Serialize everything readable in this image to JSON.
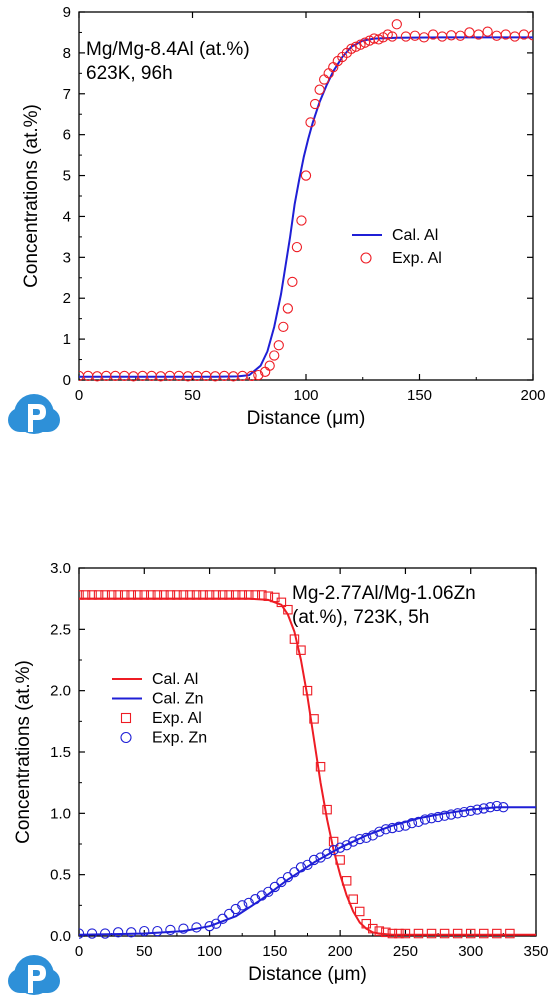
{
  "colors": {
    "red": "#ee1c24",
    "blue": "#1f1fd6",
    "logo": "#2e90d8"
  },
  "logo_icon": "cloud-p-logo-icon",
  "chart_data": [
    {
      "type": "line",
      "title": "",
      "annotation_lines": [
        "Mg/Mg-8.4Al (at.%)",
        "623K, 96h"
      ],
      "xlabel": "Distance (μm)",
      "ylabel": "Concentrations (at.%)",
      "xlim": [
        0,
        200
      ],
      "ylim": [
        0,
        9
      ],
      "xticks": [
        "0",
        "50",
        "100",
        "150",
        "200"
      ],
      "yticks": [
        "0",
        "1",
        "2",
        "3",
        "4",
        "5",
        "6",
        "7",
        "8",
        "9"
      ],
      "legend": "center-right",
      "grid": false,
      "series": [
        {
          "name": "Cal. Al",
          "style": "line",
          "color": "#1f1fd6",
          "x": [
            0,
            20,
            40,
            60,
            70,
            75,
            80,
            83,
            86,
            89,
            91,
            93,
            95,
            97,
            99,
            101,
            103,
            106,
            109,
            112,
            116,
            120,
            125,
            130,
            140,
            160,
            180,
            200
          ],
          "y": [
            0.08,
            0.08,
            0.08,
            0.08,
            0.09,
            0.12,
            0.35,
            0.7,
            1.3,
            2.1,
            2.8,
            3.5,
            4.3,
            4.9,
            5.45,
            5.9,
            6.3,
            6.8,
            7.2,
            7.55,
            7.9,
            8.15,
            8.3,
            8.35,
            8.37,
            8.38,
            8.38,
            8.38
          ]
        },
        {
          "name": "Exp. Al",
          "style": "circle",
          "color": "#ee1c24",
          "x": [
            0,
            4,
            8,
            12,
            16,
            20,
            24,
            28,
            32,
            36,
            40,
            44,
            48,
            52,
            56,
            60,
            64,
            68,
            72,
            76,
            79,
            82,
            84,
            86,
            88,
            90,
            92,
            94,
            96,
            98,
            100,
            102,
            104,
            106,
            108,
            110,
            112,
            114,
            116,
            118,
            120,
            122,
            124,
            126,
            128,
            130,
            132,
            134,
            136,
            138,
            140,
            144,
            148,
            152,
            156,
            160,
            164,
            168,
            172,
            176,
            180,
            184,
            188,
            192,
            196,
            200
          ],
          "y": [
            0.1,
            0.1,
            0.09,
            0.1,
            0.1,
            0.1,
            0.09,
            0.1,
            0.1,
            0.09,
            0.1,
            0.1,
            0.09,
            0.1,
            0.1,
            0.09,
            0.1,
            0.09,
            0.1,
            0.1,
            0.12,
            0.2,
            0.35,
            0.6,
            0.85,
            1.3,
            1.75,
            2.4,
            3.25,
            3.9,
            5.0,
            6.3,
            6.75,
            7.1,
            7.35,
            7.5,
            7.65,
            7.8,
            7.9,
            8.0,
            8.1,
            8.15,
            8.2,
            8.25,
            8.3,
            8.35,
            8.33,
            8.38,
            8.45,
            8.4,
            8.7,
            8.4,
            8.42,
            8.38,
            8.45,
            8.4,
            8.43,
            8.42,
            8.5,
            8.45,
            8.52,
            8.42,
            8.45,
            8.4,
            8.45,
            8.43
          ]
        }
      ]
    },
    {
      "type": "line",
      "title": "",
      "annotation_lines": [
        "Mg-2.77Al/Mg-1.06Zn",
        "(at.%), 723K, 5h"
      ],
      "xlabel": "Distance (μm)",
      "ylabel": "Concentrations (at.%)",
      "xlim": [
        0,
        350
      ],
      "ylim": [
        0,
        3.0
      ],
      "xticks": [
        "0",
        "50",
        "100",
        "150",
        "200",
        "250",
        "300",
        "350"
      ],
      "yticks": [
        "0.0",
        "0.5",
        "1.0",
        "1.5",
        "2.0",
        "2.5",
        "3.0"
      ],
      "legend": "center-left",
      "grid": false,
      "series": [
        {
          "name": "Cal. Al",
          "style": "line",
          "color": "#ee1c24",
          "x": [
            0,
            50,
            100,
            130,
            145,
            155,
            160,
            165,
            170,
            175,
            180,
            185,
            190,
            195,
            200,
            205,
            210,
            215,
            220,
            225,
            230,
            240,
            260,
            300,
            350
          ],
          "y": [
            2.75,
            2.75,
            2.75,
            2.75,
            2.74,
            2.7,
            2.62,
            2.48,
            2.25,
            1.95,
            1.6,
            1.25,
            0.95,
            0.7,
            0.5,
            0.33,
            0.2,
            0.11,
            0.06,
            0.03,
            0.02,
            0.01,
            0.01,
            0.01,
            0.01
          ]
        },
        {
          "name": "Cal. Zn",
          "style": "line",
          "color": "#1f1fd6",
          "x": [
            0,
            50,
            80,
            100,
            120,
            140,
            160,
            180,
            200,
            220,
            240,
            260,
            280,
            300,
            320,
            340,
            350
          ],
          "y": [
            0.01,
            0.02,
            0.04,
            0.08,
            0.16,
            0.3,
            0.46,
            0.6,
            0.72,
            0.82,
            0.9,
            0.96,
            1.0,
            1.03,
            1.05,
            1.05,
            1.05
          ]
        },
        {
          "name": "Exp. Al",
          "style": "square",
          "color": "#ee1c24",
          "x": [
            0,
            5,
            10,
            15,
            20,
            25,
            30,
            35,
            40,
            45,
            50,
            55,
            60,
            65,
            70,
            75,
            80,
            85,
            90,
            95,
            100,
            105,
            110,
            115,
            120,
            125,
            130,
            135,
            140,
            145,
            150,
            155,
            160,
            165,
            170,
            175,
            180,
            185,
            190,
            195,
            200,
            205,
            210,
            215,
            220,
            225,
            230,
            235,
            240,
            245,
            250,
            260,
            270,
            280,
            290,
            300,
            310,
            320,
            330
          ],
          "y": [
            2.78,
            2.78,
            2.78,
            2.78,
            2.78,
            2.78,
            2.78,
            2.78,
            2.78,
            2.78,
            2.78,
            2.78,
            2.78,
            2.78,
            2.78,
            2.78,
            2.78,
            2.78,
            2.78,
            2.78,
            2.78,
            2.78,
            2.78,
            2.78,
            2.78,
            2.78,
            2.78,
            2.78,
            2.78,
            2.77,
            2.76,
            2.72,
            2.66,
            2.42,
            2.33,
            2.0,
            1.77,
            1.38,
            1.03,
            0.77,
            0.62,
            0.45,
            0.3,
            0.2,
            0.1,
            0.06,
            0.04,
            0.03,
            0.02,
            0.02,
            0.02,
            0.02,
            0.02,
            0.02,
            0.02,
            0.02,
            0.02,
            0.02,
            0.02
          ]
        },
        {
          "name": "Exp. Zn",
          "style": "circle",
          "color": "#1f1fd6",
          "x": [
            0,
            10,
            20,
            30,
            40,
            50,
            60,
            70,
            80,
            90,
            100,
            105,
            110,
            115,
            120,
            125,
            130,
            135,
            140,
            145,
            150,
            155,
            160,
            165,
            170,
            175,
            180,
            185,
            190,
            195,
            200,
            205,
            210,
            215,
            220,
            225,
            230,
            235,
            240,
            245,
            250,
            255,
            260,
            265,
            270,
            275,
            280,
            285,
            290,
            295,
            300,
            305,
            310,
            315,
            320,
            325
          ],
          "y": [
            0.02,
            0.02,
            0.02,
            0.03,
            0.03,
            0.04,
            0.04,
            0.05,
            0.06,
            0.07,
            0.08,
            0.1,
            0.14,
            0.18,
            0.22,
            0.25,
            0.27,
            0.3,
            0.33,
            0.36,
            0.4,
            0.44,
            0.48,
            0.52,
            0.56,
            0.58,
            0.62,
            0.64,
            0.67,
            0.7,
            0.72,
            0.74,
            0.77,
            0.79,
            0.8,
            0.82,
            0.85,
            0.87,
            0.88,
            0.89,
            0.9,
            0.92,
            0.93,
            0.95,
            0.96,
            0.97,
            0.98,
            0.99,
            1.0,
            1.01,
            1.02,
            1.03,
            1.04,
            1.05,
            1.06,
            1.05
          ]
        }
      ]
    }
  ]
}
